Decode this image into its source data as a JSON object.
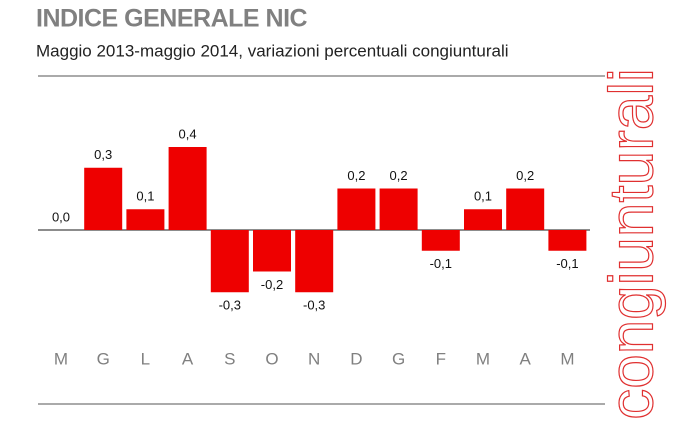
{
  "chart_data": {
    "type": "bar",
    "title": "INDICE GENERALE NIC",
    "subtitle": "Maggio 2013-maggio 2014, variazioni percentuali congiunturali",
    "side_label": "congiunturali",
    "categories": [
      "M",
      "G",
      "L",
      "A",
      "S",
      "O",
      "N",
      "D",
      "G",
      "F",
      "M",
      "A",
      "M"
    ],
    "values": [
      0.0,
      0.3,
      0.1,
      0.4,
      -0.3,
      -0.2,
      -0.3,
      0.2,
      0.2,
      -0.1,
      0.1,
      0.2,
      -0.1
    ],
    "value_labels": [
      "0,0",
      "0,3",
      "0,1",
      "0,4",
      "-0,3",
      "-0,2",
      "-0,3",
      "0,2",
      "0,2",
      "-0,1",
      "0,1",
      "0,2",
      "-0,1"
    ],
    "color": "#ee0000"
  }
}
